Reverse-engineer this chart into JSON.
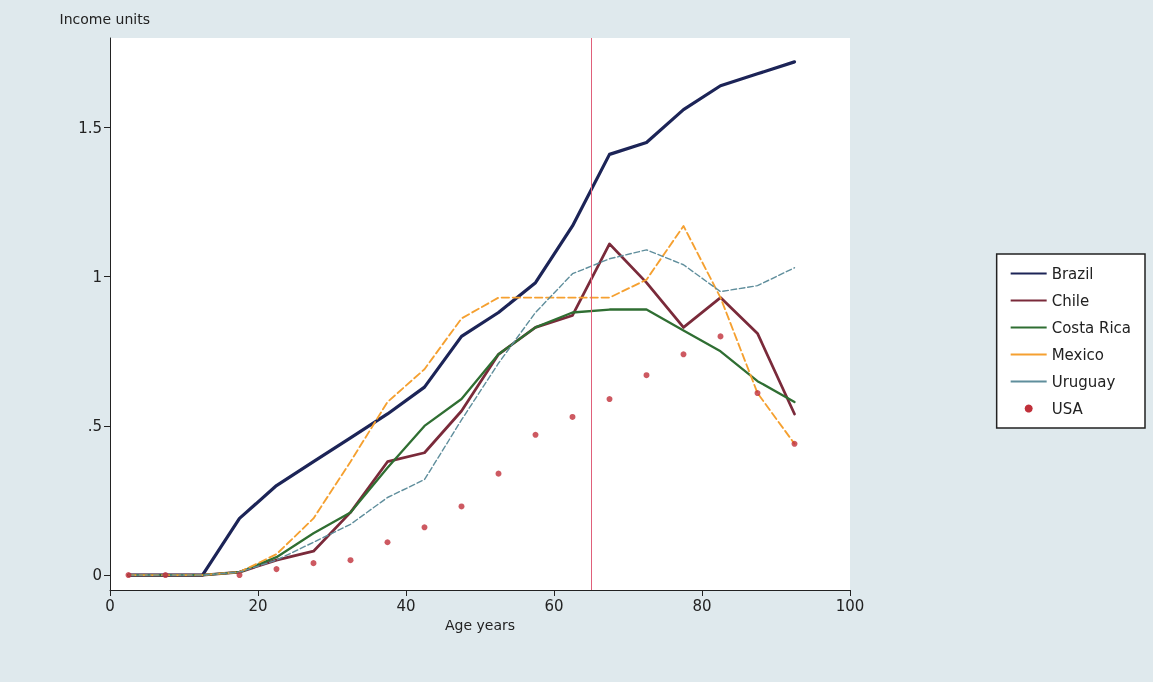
{
  "chart_data": {
    "type": "line",
    "xlabel": "Age years",
    "ylabel": "Income units",
    "x": [
      2.5,
      7.5,
      12.5,
      17.5,
      22.5,
      27.5,
      32.5,
      37.5,
      42.5,
      47.5,
      52.5,
      57.5,
      62.5,
      67.5,
      72.5,
      77.5,
      82.5,
      87.5,
      92.5
    ],
    "series": [
      {
        "name": "Brazil",
        "color": "#1c2457",
        "line_style": "solid",
        "values": [
          0,
          0,
          0,
          0.19,
          0.3,
          0.38,
          0.46,
          0.54,
          0.63,
          0.8,
          0.88,
          0.98,
          1.17,
          1.41,
          1.45,
          1.56,
          1.64,
          1.68,
          1.72
        ]
      },
      {
        "name": "Chile",
        "color": "#7a2a3a",
        "line_style": "solid",
        "values": [
          0,
          0,
          0,
          0.01,
          0.05,
          0.08,
          0.21,
          0.38,
          0.41,
          0.55,
          0.74,
          0.83,
          0.87,
          1.11,
          0.98,
          0.83,
          0.93,
          0.81,
          0.54
        ]
      },
      {
        "name": "Costa Rica",
        "color": "#2f6e32",
        "line_style": "solid",
        "values": [
          0,
          0,
          0,
          0.01,
          0.06,
          0.14,
          0.21,
          0.36,
          0.5,
          0.59,
          0.74,
          0.83,
          0.88,
          0.89,
          0.89,
          0.82,
          0.75,
          0.65,
          0.58
        ]
      },
      {
        "name": "Mexico",
        "color": "#f5a030",
        "line_style": "dashed",
        "values": [
          0,
          0,
          0,
          0.01,
          0.07,
          0.19,
          0.38,
          0.58,
          0.69,
          0.86,
          0.93,
          0.93,
          0.93,
          0.93,
          0.99,
          1.17,
          0.93,
          0.61,
          0.44
        ]
      },
      {
        "name": "Uruguay",
        "color": "#5f8e9c",
        "line_style": "dashed",
        "values": [
          0,
          0,
          0,
          0.01,
          0.05,
          0.11,
          0.17,
          0.26,
          0.32,
          0.52,
          0.71,
          0.88,
          1.01,
          1.06,
          1.09,
          1.04,
          0.95,
          0.97,
          1.03
        ]
      },
      {
        "name": "USA",
        "type": "scatter",
        "marker": "circle",
        "color": "#c0303a",
        "values": [
          0,
          0,
          null,
          0,
          0.02,
          0.04,
          0.05,
          0.11,
          0.16,
          0.23,
          0.34,
          0.47,
          0.53,
          0.59,
          0.67,
          0.74,
          0.8,
          0.61,
          0.44
        ]
      }
    ],
    "xlim": [
      0,
      100
    ],
    "xticks": [
      0,
      20,
      40,
      60,
      80,
      100
    ],
    "ylim": [
      -0.05,
      1.8
    ],
    "yticks": [
      0,
      {
        "value": 0.5,
        "label": ".5"
      },
      1,
      1.5
    ],
    "ref_lines": [
      {
        "axis": "x",
        "value": 65,
        "color": "#e0607a",
        "line_style": "solid"
      }
    ],
    "grid": false,
    "legend": "right",
    "marker": "none"
  }
}
